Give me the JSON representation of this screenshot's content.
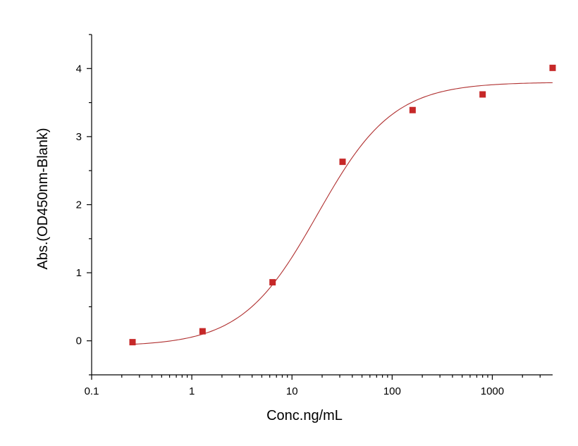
{
  "chart_data": {
    "type": "scatter",
    "xlabel": "Conc.ng/mL",
    "ylabel": "Abs.(OD450nm-Blank)",
    "xscale": "log",
    "xlim": [
      0.1,
      4000
    ],
    "ylim": [
      -0.5,
      4.5
    ],
    "x_ticks": [
      0.1,
      1,
      10,
      100,
      1000
    ],
    "x_tick_labels": [
      "0.1",
      "1",
      "10",
      "100",
      "1000"
    ],
    "y_ticks": [
      0,
      1,
      2,
      3,
      4
    ],
    "y_tick_labels": [
      "0",
      "1",
      "2",
      "3",
      "4"
    ],
    "grid": false,
    "series": [
      {
        "kind": "points",
        "marker": "square",
        "color": "#c62828",
        "x": [
          0.256,
          1.28,
          6.4,
          32,
          160,
          800,
          4000
        ],
        "y": [
          -0.02,
          0.14,
          0.86,
          2.63,
          3.39,
          3.62,
          4.01
        ]
      },
      {
        "kind": "fit-curve",
        "color": "#b03030",
        "fit": {
          "bottom": -0.08,
          "top": 3.8,
          "ec50": 18,
          "hill": 1.15
        }
      }
    ]
  }
}
